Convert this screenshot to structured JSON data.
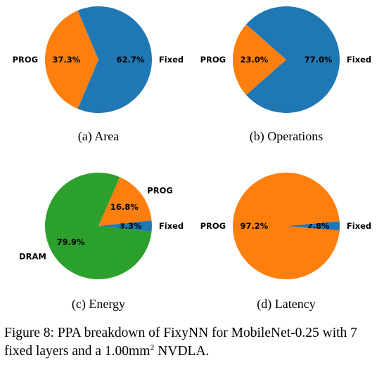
{
  "chart_data": [
    {
      "type": "pie",
      "caption": "(a) Area",
      "slices": [
        {
          "label": "Fixed",
          "value": 62.7,
          "pct_text": "62.7%",
          "color": "#1f77b4"
        },
        {
          "label": "PROG",
          "value": 37.3,
          "pct_text": "37.3%",
          "color": "#ff7f0e"
        }
      ]
    },
    {
      "type": "pie",
      "caption": "(b) Operations",
      "slices": [
        {
          "label": "Fixed",
          "value": 77.0,
          "pct_text": "77.0%",
          "color": "#1f77b4"
        },
        {
          "label": "PROG",
          "value": 23.0,
          "pct_text": "23.0%",
          "color": "#ff7f0e"
        }
      ]
    },
    {
      "type": "pie",
      "caption": "(c) Energy",
      "slices": [
        {
          "label": "Fixed",
          "value": 3.3,
          "pct_text": "3.3%",
          "color": "#1f77b4"
        },
        {
          "label": "PROG",
          "value": 16.8,
          "pct_text": "16.8%",
          "color": "#ff7f0e"
        },
        {
          "label": "DRAM",
          "value": 79.9,
          "pct_text": "79.9%",
          "color": "#2ca02c"
        }
      ]
    },
    {
      "type": "pie",
      "caption": "(d) Latency",
      "slices": [
        {
          "label": "Fixed",
          "value": 2.8,
          "pct_text": "2.8%",
          "color": "#1f77b4"
        },
        {
          "label": "PROG",
          "value": 97.2,
          "pct_text": "97.2%",
          "color": "#ff7f0e"
        }
      ]
    }
  ],
  "figure_caption": {
    "prefix": "Figure 8: PPA breakdown of FixyNN for MobileNet-0.25 with 7 fixed layers and a 1.00mm",
    "superscript": "2",
    "suffix": " NVDLA."
  }
}
